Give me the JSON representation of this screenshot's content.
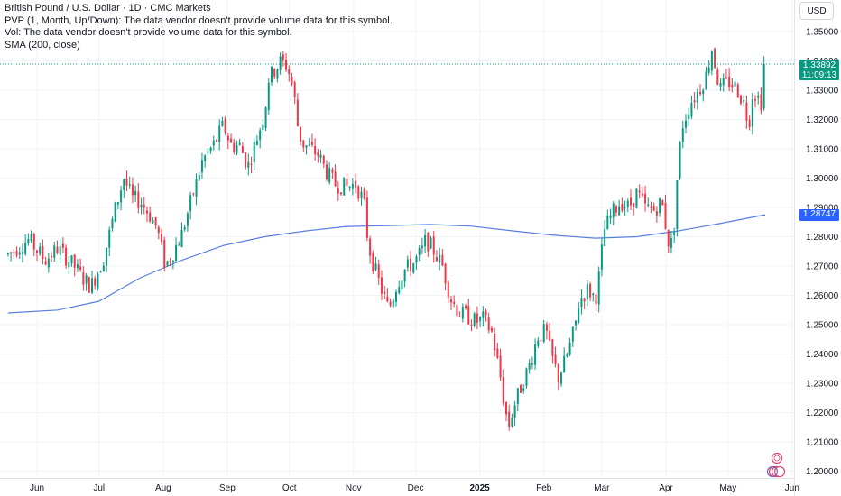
{
  "header": {
    "title": "British Pound / U.S. Dollar · 1D · CMC Markets",
    "indicators": [
      "PVP (1, Month, Up/Down): The data vendor doesn't provide volume data for this symbol.",
      "Vol: The data vendor doesn't provide volume data for this symbol.",
      "SMA (200, close)"
    ],
    "currency": "USD"
  },
  "price_label": {
    "price": "1.33892",
    "countdown": "11:09:13"
  },
  "sma_label": "1.28747",
  "colors": {
    "up": "#089981",
    "down": "#f23645",
    "sma": "#5b7fe0",
    "grid": "#f0f3fa",
    "axis_text": "#131722"
  },
  "chart_data": {
    "type": "candlestick",
    "title": "British Pound / U.S. Dollar · 1D · CMC Markets",
    "ylim": [
      1.196,
      1.356
    ],
    "yticks": [
      "1.35000",
      "1.34000",
      "1.33000",
      "1.32000",
      "1.31000",
      "1.30000",
      "1.29000",
      "1.28000",
      "1.27000",
      "1.26000",
      "1.25000",
      "1.24000",
      "1.23000",
      "1.22000",
      "1.21000",
      "1.20000"
    ],
    "xticks": [
      {
        "label": "Jun",
        "day": 0
      },
      {
        "label": "Jul",
        "day": 30
      },
      {
        "label": "Aug",
        "day": 61
      },
      {
        "label": "Sep",
        "day": 92
      },
      {
        "label": "Oct",
        "day": 122
      },
      {
        "label": "Nov",
        "day": 153
      },
      {
        "label": "Dec",
        "day": 183
      },
      {
        "label": "2025",
        "day": 214
      },
      {
        "label": "Feb",
        "day": 245
      },
      {
        "label": "Mar",
        "day": 273
      },
      {
        "label": "Apr",
        "day": 304
      },
      {
        "label": "May",
        "day": 334
      },
      {
        "label": "Jun",
        "day": 365
      }
    ],
    "close_path": [
      [
        -14,
        1.274
      ],
      [
        -4,
        1.279
      ],
      [
        4,
        1.272
      ],
      [
        10,
        1.276
      ],
      [
        18,
        1.27
      ],
      [
        22,
        1.266
      ],
      [
        26,
        1.263
      ],
      [
        32,
        1.272
      ],
      [
        38,
        1.29
      ],
      [
        42,
        1.3
      ],
      [
        46,
        1.293
      ],
      [
        50,
        1.292
      ],
      [
        54,
        1.288
      ],
      [
        58,
        1.283
      ],
      [
        62,
        1.27
      ],
      [
        66,
        1.275
      ],
      [
        70,
        1.281
      ],
      [
        74,
        1.291
      ],
      [
        80,
        1.306
      ],
      [
        86,
        1.312
      ],
      [
        90,
        1.318
      ],
      [
        94,
        1.311
      ],
      [
        98,
        1.311
      ],
      [
        102,
        1.304
      ],
      [
        106,
        1.313
      ],
      [
        110,
        1.322
      ],
      [
        112,
        1.334
      ],
      [
        116,
        1.338
      ],
      [
        118,
        1.34
      ],
      [
        121,
        1.338
      ],
      [
        124,
        1.33
      ],
      [
        126,
        1.318
      ],
      [
        128,
        1.312
      ],
      [
        132,
        1.31
      ],
      [
        136,
        1.308
      ],
      [
        140,
        1.302
      ],
      [
        144,
        1.298
      ],
      [
        150,
        1.297
      ],
      [
        154,
        1.298
      ],
      [
        158,
        1.292
      ],
      [
        160,
        1.278
      ],
      [
        162,
        1.272
      ],
      [
        166,
        1.263
      ],
      [
        170,
        1.255
      ],
      [
        174,
        1.264
      ],
      [
        178,
        1.269
      ],
      [
        182,
        1.271
      ],
      [
        186,
        1.275
      ],
      [
        188,
        1.279
      ],
      [
        192,
        1.275
      ],
      [
        196,
        1.27
      ],
      [
        200,
        1.259
      ],
      [
        204,
        1.254
      ],
      [
        208,
        1.253
      ],
      [
        212,
        1.251
      ],
      [
        216,
        1.252
      ],
      [
        220,
        1.247
      ],
      [
        224,
        1.232
      ],
      [
        226,
        1.222
      ],
      [
        228,
        1.215
      ],
      [
        230,
        1.221
      ],
      [
        234,
        1.229
      ],
      [
        238,
        1.236
      ],
      [
        242,
        1.246
      ],
      [
        246,
        1.248
      ],
      [
        248,
        1.241
      ],
      [
        252,
        1.232
      ],
      [
        256,
        1.239
      ],
      [
        260,
        1.249
      ],
      [
        262,
        1.258
      ],
      [
        266,
        1.262
      ],
      [
        270,
        1.259
      ],
      [
        272,
        1.268
      ],
      [
        274,
        1.282
      ],
      [
        278,
        1.288
      ],
      [
        282,
        1.292
      ],
      [
        286,
        1.29
      ],
      [
        290,
        1.295
      ],
      [
        294,
        1.29
      ],
      [
        298,
        1.289
      ],
      [
        302,
        1.292
      ],
      [
        306,
        1.275
      ],
      [
        308,
        1.284
      ],
      [
        310,
        1.306
      ],
      [
        312,
        1.318
      ],
      [
        316,
        1.326
      ],
      [
        320,
        1.33
      ],
      [
        324,
        1.336
      ],
      [
        326,
        1.345
      ],
      [
        330,
        1.33
      ],
      [
        334,
        1.333
      ],
      [
        338,
        1.331
      ],
      [
        342,
        1.325
      ],
      [
        344,
        1.318
      ],
      [
        346,
        1.33
      ],
      [
        350,
        1.326
      ],
      [
        352,
        1.339
      ]
    ],
    "sma_path": [
      [
        -14,
        1.254
      ],
      [
        10,
        1.255
      ],
      [
        30,
        1.258
      ],
      [
        50,
        1.266
      ],
      [
        70,
        1.272
      ],
      [
        90,
        1.277
      ],
      [
        110,
        1.28
      ],
      [
        130,
        1.282
      ],
      [
        150,
        1.2835
      ],
      [
        170,
        1.2838
      ],
      [
        190,
        1.2842
      ],
      [
        210,
        1.2836
      ],
      [
        230,
        1.282
      ],
      [
        250,
        1.2805
      ],
      [
        270,
        1.2795
      ],
      [
        290,
        1.28
      ],
      [
        310,
        1.282
      ],
      [
        330,
        1.2845
      ],
      [
        352,
        1.2875
      ]
    ],
    "last_price": 1.33892,
    "sma_value": 1.28747
  }
}
